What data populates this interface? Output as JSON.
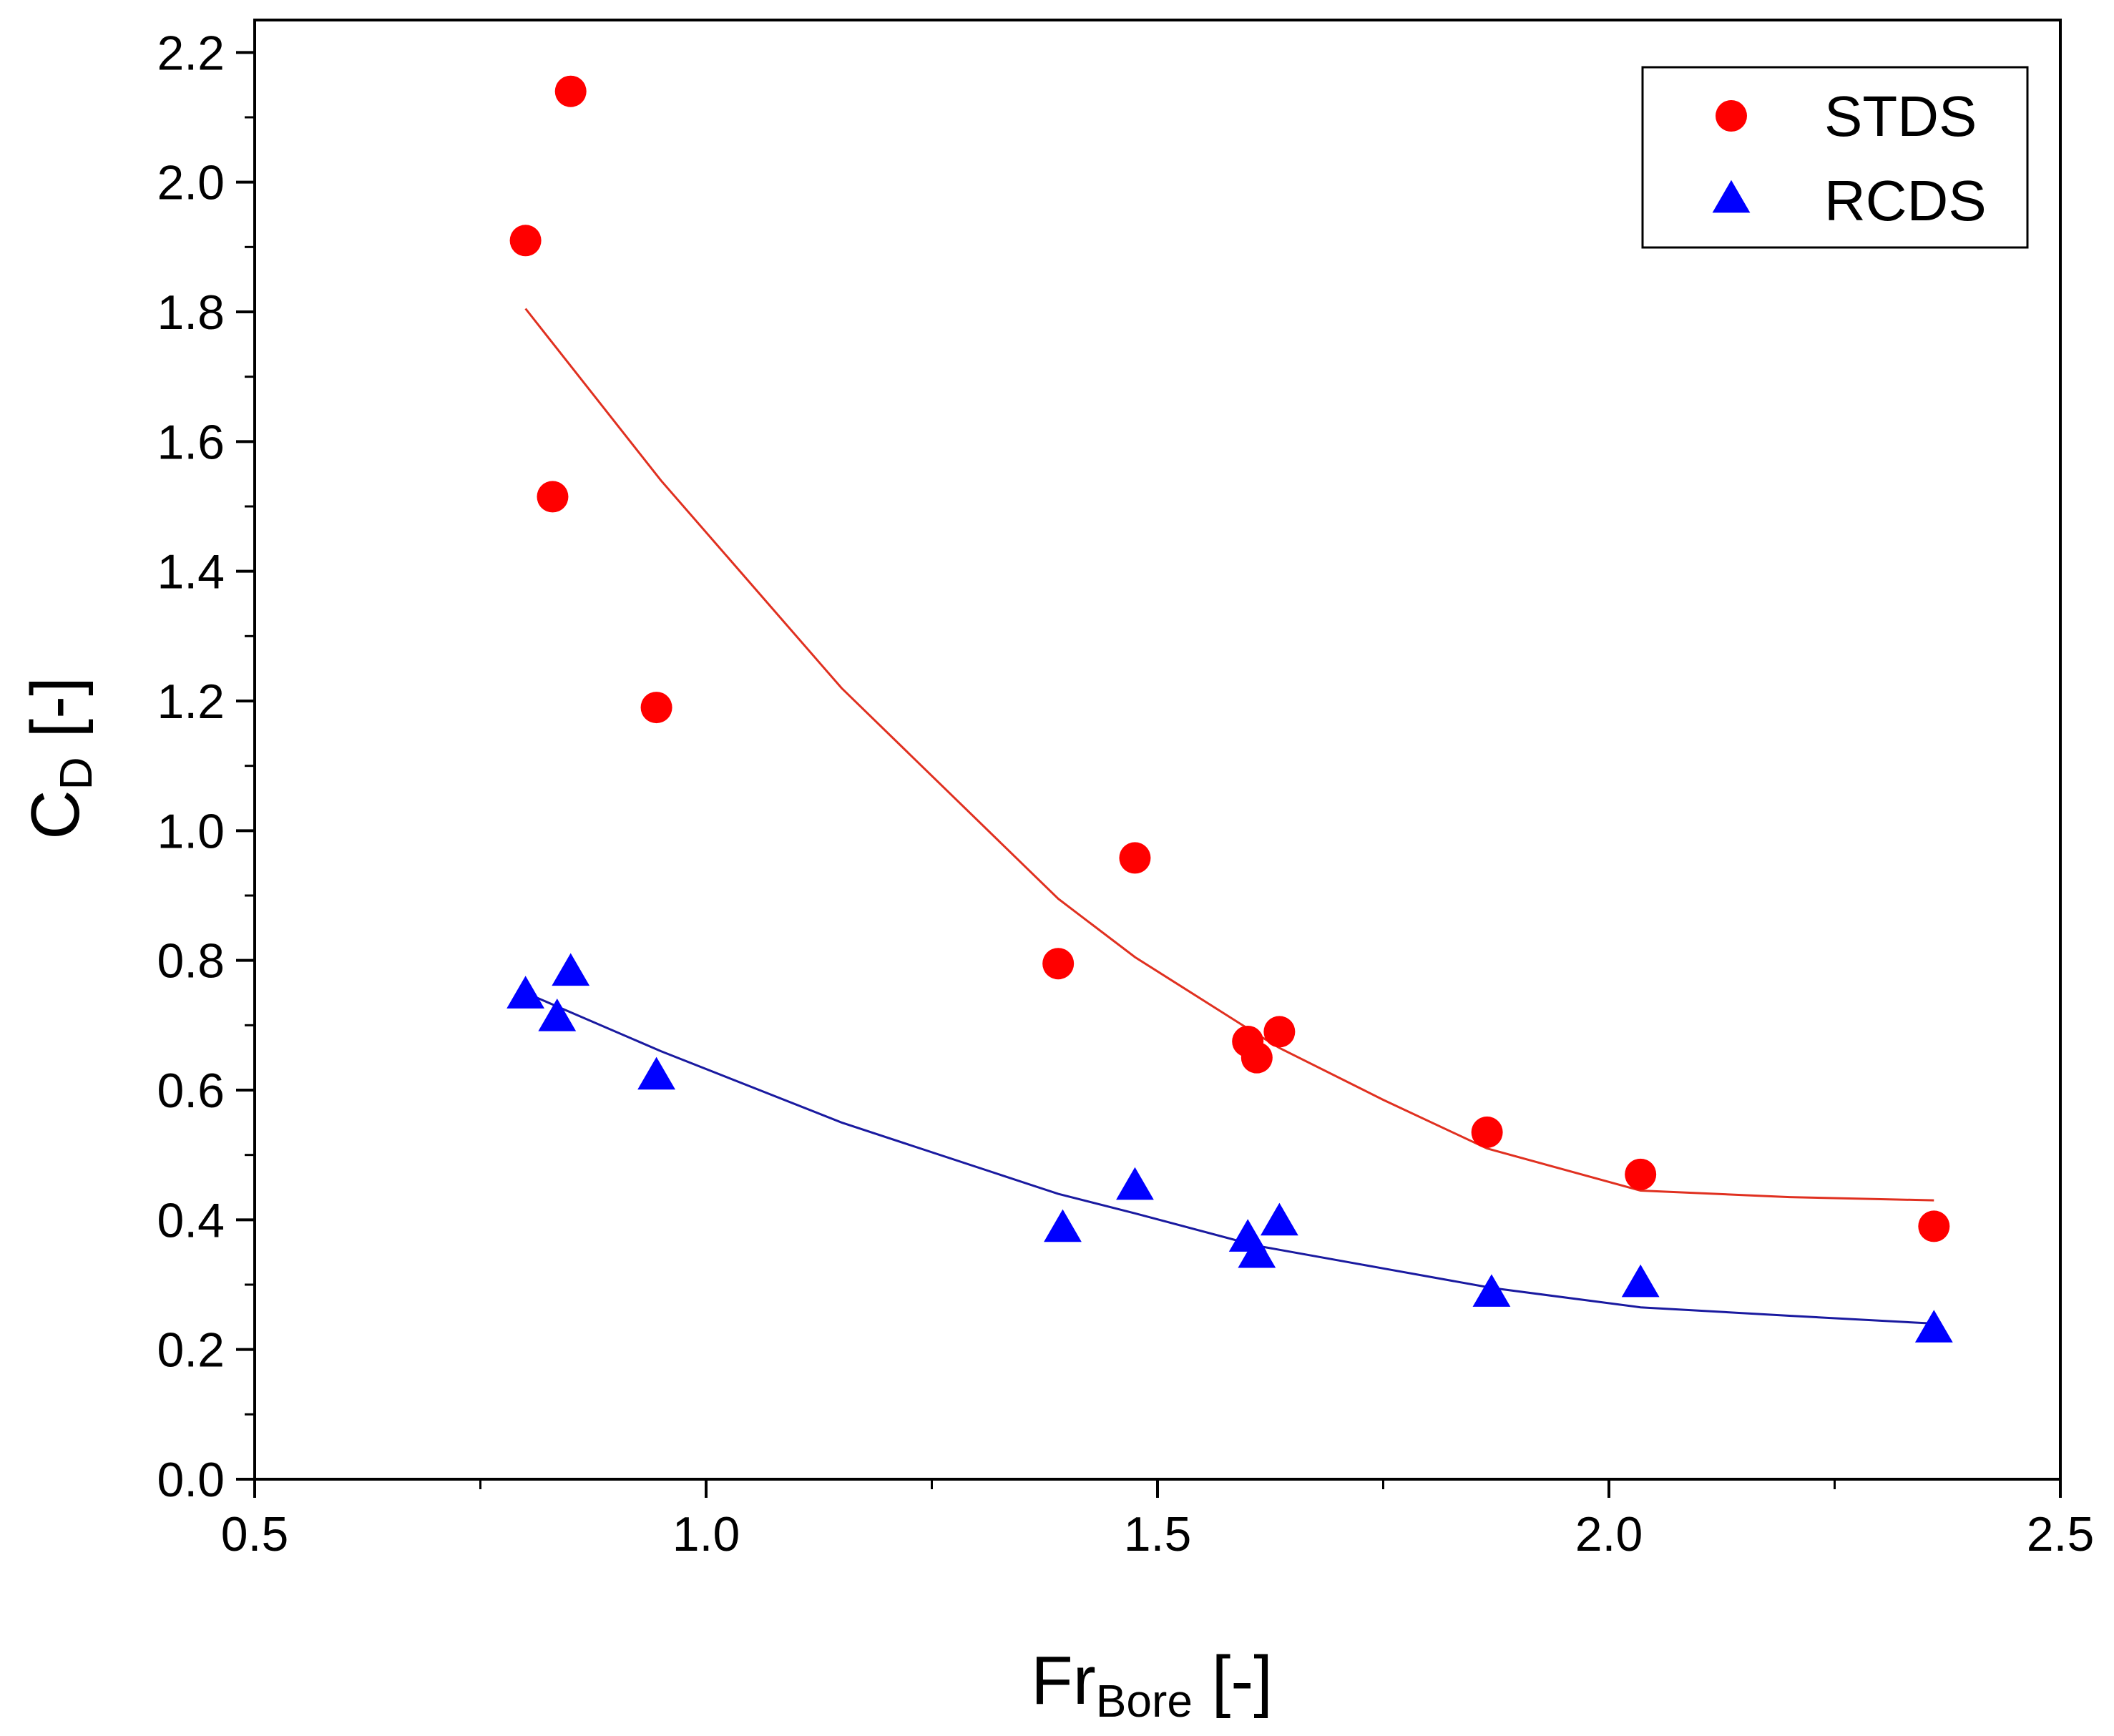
{
  "chart_data": {
    "type": "scatter",
    "xlabel": {
      "main": "Fr",
      "sub": "Bore",
      "unit": " [-]"
    },
    "ylabel": {
      "main": "C",
      "sub": "D",
      "unit": " [-]"
    },
    "xlim": [
      0.5,
      2.5
    ],
    "ylim": [
      0.0,
      2.25
    ],
    "xticks": [
      "0.5",
      "1.0",
      "1.5",
      "2.0",
      "2.5"
    ],
    "yticks": [
      "0.0",
      "0.2",
      "0.4",
      "0.6",
      "0.8",
      "1.0",
      "1.2",
      "1.4",
      "1.6",
      "1.8",
      "2.0",
      "2.2"
    ],
    "legend_position": "top-right",
    "series": [
      {
        "name": "STDS",
        "marker": "circle",
        "color": "#ff0000",
        "line_color": "#e03020",
        "points": [
          {
            "x": 0.8,
            "y": 1.91
          },
          {
            "x": 0.83,
            "y": 1.515
          },
          {
            "x": 0.85,
            "y": 2.14
          },
          {
            "x": 0.945,
            "y": 1.19
          },
          {
            "x": 1.39,
            "y": 0.795
          },
          {
            "x": 1.475,
            "y": 0.958
          },
          {
            "x": 1.6,
            "y": 0.675
          },
          {
            "x": 1.61,
            "y": 0.65
          },
          {
            "x": 1.635,
            "y": 0.69
          },
          {
            "x": 1.865,
            "y": 0.535
          },
          {
            "x": 2.035,
            "y": 0.47
          },
          {
            "x": 2.36,
            "y": 0.39
          }
        ],
        "fit": [
          {
            "x": 0.8,
            "y": 1.805
          },
          {
            "x": 0.95,
            "y": 1.54
          },
          {
            "x": 1.15,
            "y": 1.22
          },
          {
            "x": 1.39,
            "y": 0.895
          },
          {
            "x": 1.475,
            "y": 0.805
          },
          {
            "x": 1.6,
            "y": 0.695
          },
          {
            "x": 1.635,
            "y": 0.665
          },
          {
            "x": 1.75,
            "y": 0.585
          },
          {
            "x": 1.865,
            "y": 0.51
          },
          {
            "x": 2.035,
            "y": 0.445
          },
          {
            "x": 2.2,
            "y": 0.435
          },
          {
            "x": 2.36,
            "y": 0.43
          }
        ]
      },
      {
        "name": "RCDS",
        "marker": "triangle",
        "color": "#0000ff",
        "line_color": "#1a1aa0",
        "points": [
          {
            "x": 0.8,
            "y": 0.745
          },
          {
            "x": 0.835,
            "y": 0.71
          },
          {
            "x": 0.85,
            "y": 0.78
          },
          {
            "x": 0.945,
            "y": 0.62
          },
          {
            "x": 1.395,
            "y": 0.385
          },
          {
            "x": 1.475,
            "y": 0.45
          },
          {
            "x": 1.6,
            "y": 0.37
          },
          {
            "x": 1.61,
            "y": 0.345
          },
          {
            "x": 1.635,
            "y": 0.395
          },
          {
            "x": 1.87,
            "y": 0.285
          },
          {
            "x": 2.035,
            "y": 0.3
          },
          {
            "x": 2.36,
            "y": 0.23
          }
        ],
        "fit": [
          {
            "x": 0.8,
            "y": 0.75
          },
          {
            "x": 0.85,
            "y": 0.72
          },
          {
            "x": 0.95,
            "y": 0.66
          },
          {
            "x": 1.15,
            "y": 0.55
          },
          {
            "x": 1.39,
            "y": 0.44
          },
          {
            "x": 1.475,
            "y": 0.41
          },
          {
            "x": 1.61,
            "y": 0.36
          },
          {
            "x": 1.75,
            "y": 0.325
          },
          {
            "x": 1.87,
            "y": 0.295
          },
          {
            "x": 2.035,
            "y": 0.265
          },
          {
            "x": 2.2,
            "y": 0.252
          },
          {
            "x": 2.36,
            "y": 0.24
          }
        ]
      }
    ]
  }
}
